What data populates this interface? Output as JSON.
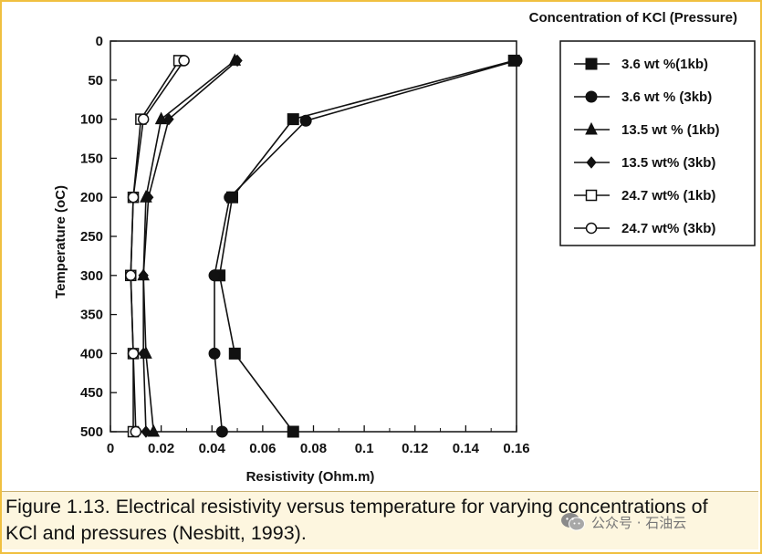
{
  "chart_data": {
    "type": "line",
    "title": "Concentration of KCl (Pressure)",
    "xlabel": "Resistivity (Ohm.m)",
    "ylabel": "Temperature (oC)",
    "xlim": [
      0,
      0.16
    ],
    "ylim": [
      0,
      500
    ],
    "y_inverted": true,
    "x_ticks": [
      "0",
      "0.02",
      "0.04",
      "0.06",
      "0.08",
      "0.1",
      "0.12",
      "0.14",
      "0.16"
    ],
    "y_ticks": [
      "0",
      "50",
      "100",
      "150",
      "200",
      "250",
      "300",
      "350",
      "400",
      "450",
      "500"
    ],
    "grid": false,
    "legend_position": "top-right",
    "series": [
      {
        "name": "3.6 wt %(1kb)",
        "marker": "square-filled",
        "points": [
          [
            0.159,
            25
          ],
          [
            0.072,
            100
          ],
          [
            0.048,
            200
          ],
          [
            0.043,
            300
          ],
          [
            0.049,
            400
          ],
          [
            0.072,
            500
          ]
        ]
      },
      {
        "name": "3.6 wt % (3kb)",
        "marker": "circle-filled",
        "points": [
          [
            0.16,
            25
          ],
          [
            0.077,
            102
          ],
          [
            0.047,
            200
          ],
          [
            0.041,
            300
          ],
          [
            0.041,
            400
          ],
          [
            0.044,
            500
          ]
        ]
      },
      {
        "name": "13.5 wt % (1kb)",
        "marker": "triangle-filled",
        "points": [
          [
            0.049,
            25
          ],
          [
            0.02,
            100
          ],
          [
            0.014,
            200
          ],
          [
            0.013,
            300
          ],
          [
            0.014,
            400
          ],
          [
            0.017,
            500
          ]
        ]
      },
      {
        "name": "13.5 wt% (3kb)",
        "marker": "diamond-filled",
        "points": [
          [
            0.05,
            25
          ],
          [
            0.023,
            100
          ],
          [
            0.015,
            200
          ],
          [
            0.013,
            300
          ],
          [
            0.013,
            400
          ],
          [
            0.014,
            500
          ]
        ]
      },
      {
        "name": "24.7 wt% (1kb)",
        "marker": "square-open",
        "points": [
          [
            0.027,
            25
          ],
          [
            0.012,
            100
          ],
          [
            0.009,
            200
          ],
          [
            0.008,
            300
          ],
          [
            0.009,
            400
          ],
          [
            0.009,
            500
          ]
        ]
      },
      {
        "name": "24.7 wt% (3kb)",
        "marker": "circle-open",
        "points": [
          [
            0.029,
            25
          ],
          [
            0.013,
            100
          ],
          [
            0.009,
            200
          ],
          [
            0.008,
            300
          ],
          [
            0.009,
            400
          ],
          [
            0.01,
            500
          ]
        ]
      }
    ]
  },
  "caption": "Figure 1.13. Electrical resistivity versus temperature for varying concentrations of KCl and pressures (Nesbitt, 1993).",
  "watermark": "公众号 · 石油云",
  "colors": {
    "frame": "#f0c040",
    "caption_bg": "#fdf6df",
    "ink": "#111111"
  }
}
